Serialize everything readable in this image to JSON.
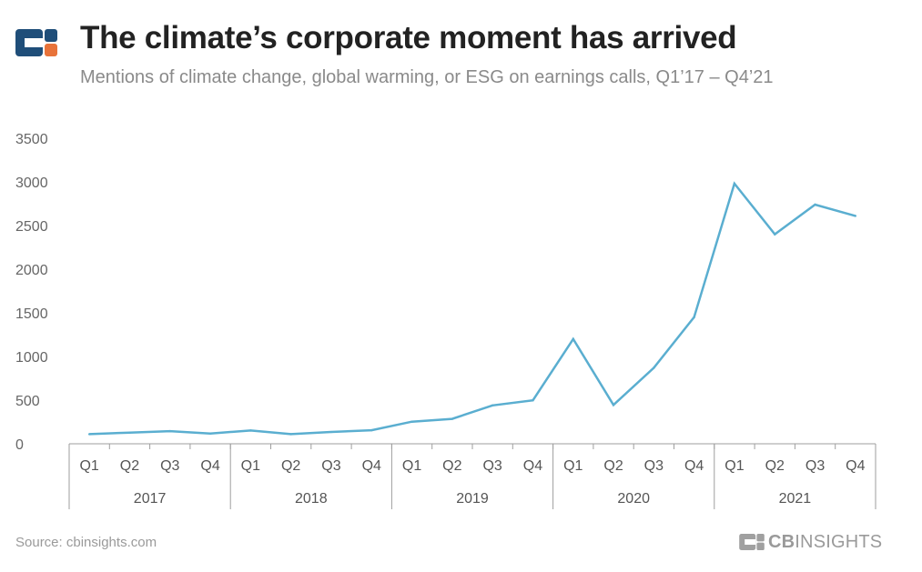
{
  "header": {
    "title": "The climate’s corporate moment has arrived",
    "subtitle": "Mentions of climate change, global warming, or ESG on earnings calls, Q1’17 – Q4’21"
  },
  "footer": {
    "source": "Source: cbinsights.com",
    "brand_bold": "CB",
    "brand_rest": "INSIGHTS"
  },
  "colors": {
    "line": "#5aaed0",
    "axis": "#9e9e9e",
    "logo_blue": "#1f4e79",
    "logo_orange": "#e8733a"
  },
  "chart_data": {
    "type": "line",
    "quarters": [
      "Q1",
      "Q2",
      "Q3",
      "Q4",
      "Q1",
      "Q2",
      "Q3",
      "Q4",
      "Q1",
      "Q2",
      "Q3",
      "Q4",
      "Q1",
      "Q2",
      "Q3",
      "Q4",
      "Q1",
      "Q2",
      "Q3",
      "Q4"
    ],
    "years": [
      "2017",
      "2018",
      "2019",
      "2020",
      "2021"
    ],
    "values": [
      110,
      128,
      145,
      118,
      152,
      110,
      135,
      155,
      253,
      285,
      440,
      498,
      1200,
      445,
      870,
      1450,
      2980,
      2400,
      2740,
      2610
    ],
    "ylim": [
      0,
      3500
    ],
    "yticks": [
      "0",
      "500",
      "1000",
      "1500",
      "2000",
      "2500",
      "3000",
      "3500"
    ],
    "grid": false,
    "legend": "none"
  }
}
